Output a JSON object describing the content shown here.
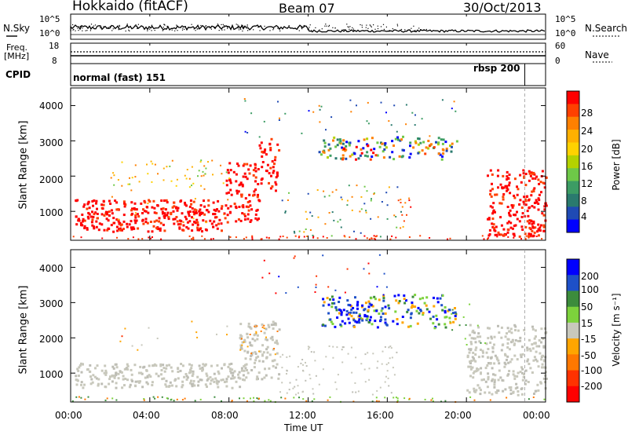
{
  "header": {
    "station": "Hokkaido (fitACF)",
    "beam": "Beam 07",
    "date": "30/Oct/2013"
  },
  "side_labels": {
    "nsky": "N.Sky",
    "nsearch": "N.Search",
    "freq_line1": "Freq.",
    "freq_line2": "[MHz]",
    "nave": "Nave",
    "cpid": "CPID"
  },
  "chart_data": [
    {
      "type": "line",
      "name": "noise",
      "left_ticks": [
        "10^5",
        "10^0"
      ],
      "right_ticks": [
        "10^5",
        "10^0"
      ]
    },
    {
      "type": "line",
      "name": "frequency",
      "left_ticks": [
        "18",
        "8"
      ],
      "right_ticks": [
        "60",
        "0"
      ]
    },
    {
      "type": "table",
      "name": "cpid",
      "segments": [
        {
          "label": "normal (fast) 151",
          "from": "00:00",
          "to": "22:30"
        },
        {
          "label": "rbsp 200",
          "from": "22:30",
          "to": "24:00"
        }
      ]
    },
    {
      "type": "heatmap",
      "name": "power",
      "ylabel": "Slant Range [km]",
      "yticks": [
        "4000",
        "3000",
        "2000",
        "1000"
      ],
      "ylim": [
        180,
        4500
      ],
      "xlim": [
        "00:00",
        "24:00"
      ],
      "colorbar": {
        "label": "Power [dB]",
        "ticks": [
          "28",
          "24",
          "20",
          "16",
          "12",
          "8",
          "4"
        ],
        "colors": [
          "#ff0000",
          "#ff4000",
          "#ff8000",
          "#ffb000",
          "#ffd200",
          "#b4d200",
          "#6ec848",
          "#3c9c64",
          "#2a7a6e",
          "#1f4ab4",
          "#0000ff"
        ]
      }
    },
    {
      "type": "heatmap",
      "name": "velocity",
      "ylabel": "Slant Range [km]",
      "yticks": [
        "4000",
        "3000",
        "2000",
        "1000"
      ],
      "ylim": [
        180,
        4500
      ],
      "xlim": [
        "00:00",
        "24:00"
      ],
      "xticks": [
        "00:00",
        "04:00",
        "08:00",
        "12:00",
        "16:00",
        "20:00",
        "00:00"
      ],
      "xlabel": "Time UT",
      "colorbar": {
        "label": "Velocity [m s⁻¹]",
        "ticks": [
          "200",
          "100",
          "50",
          "15",
          "-15",
          "-50",
          "-100",
          "-200"
        ],
        "colors": [
          "#0000ff",
          "#1e50c8",
          "#3c8c3c",
          "#7dd23c",
          "#c8c8bc",
          "#ffa500",
          "#ff7800",
          "#ff3200",
          "#ff0000"
        ]
      }
    }
  ]
}
